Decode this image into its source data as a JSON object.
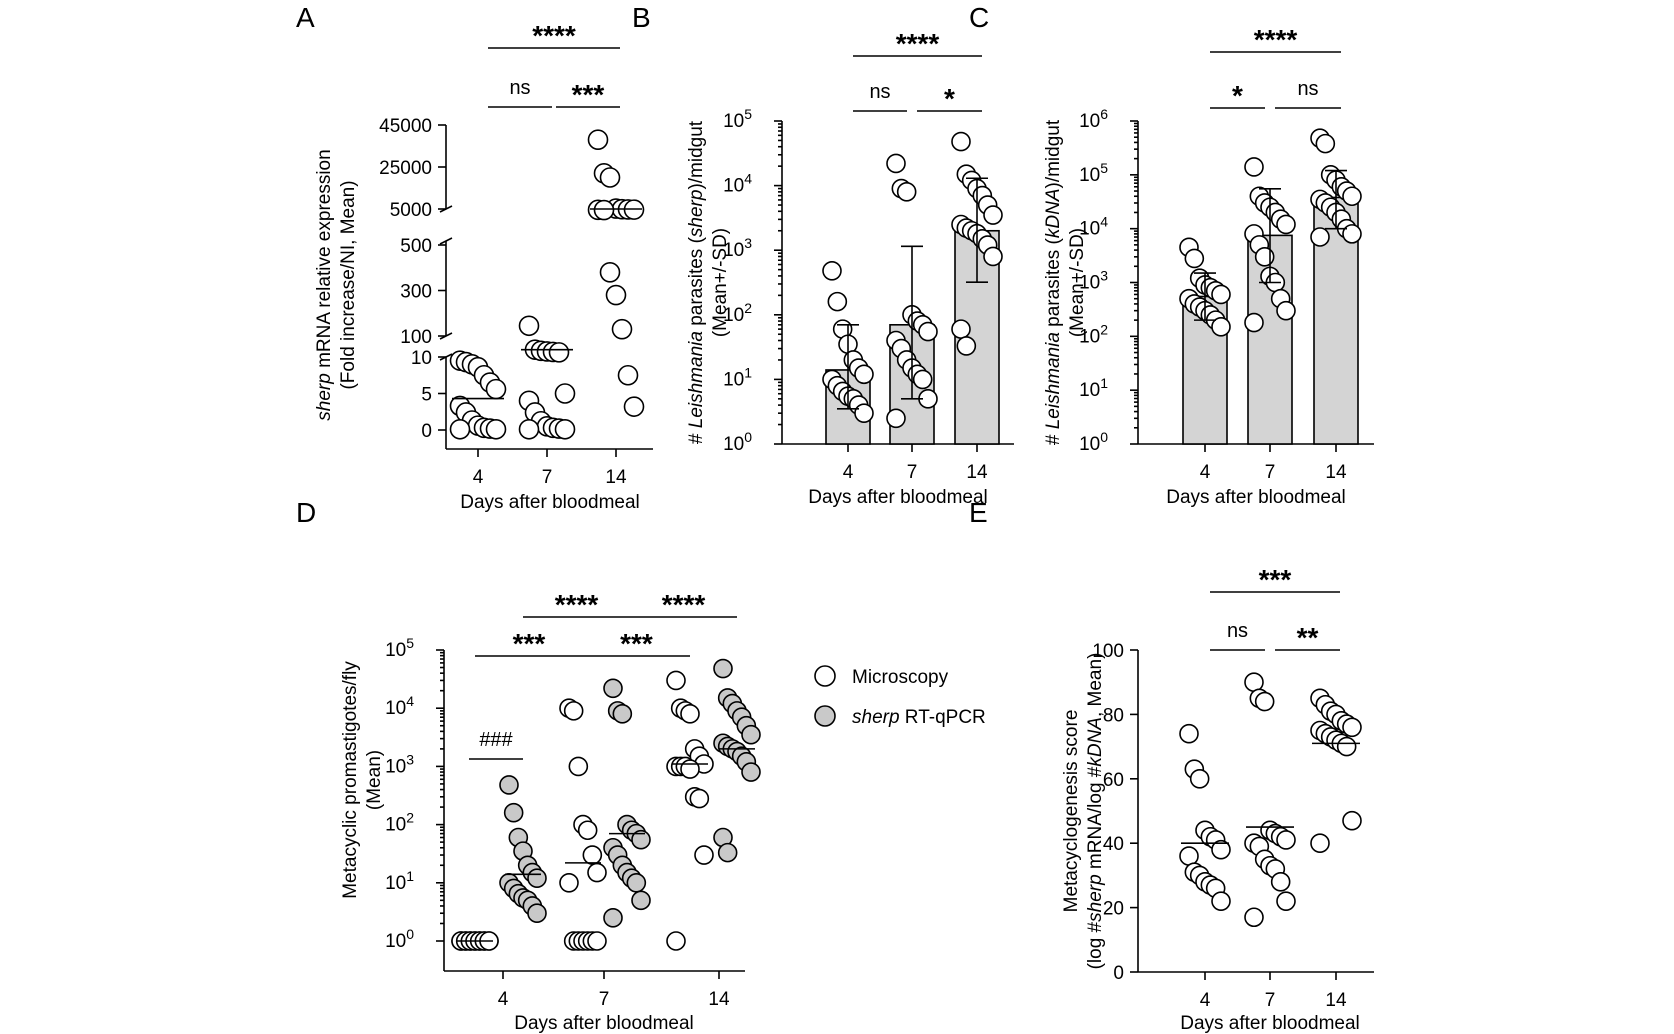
{
  "colors": {
    "open_marker": "#ffffff",
    "grey_marker": "#c9c9c9",
    "bar_fill": "#d4d4d4",
    "ink": "#000000"
  },
  "chart_data": [
    {
      "panel": "A",
      "type": "scatter",
      "ylabel_italic": "sherp",
      "ylabel_rest": " mRNA relative expression",
      "ylabel_line2": "(Fold increase/NI, Mean)",
      "xlabel": "Days after bloodmeal",
      "categories": [
        "4",
        "7",
        "14"
      ],
      "y_scale": "broken linear",
      "ytick_labels": [
        "45000",
        "25000",
        "5000",
        "500",
        "300",
        "100",
        "10",
        "5",
        "0"
      ],
      "points": [
        [
          9.5,
          9.3,
          9,
          8.6,
          7.5,
          6.5,
          5.6,
          3.3,
          2.4,
          1.3,
          0.6,
          0.3,
          0.2,
          0.1,
          0.1
        ],
        [
          145,
          40,
          35,
          32,
          30,
          28,
          5,
          4,
          2.4,
          1.2,
          0.5,
          0.3,
          0.2,
          0.1,
          0.1
        ],
        [
          38000,
          22000,
          20000,
          5200,
          4900,
          4800,
          4700,
          4600,
          4500,
          380,
          280,
          130,
          7.5,
          3.2
        ]
      ],
      "means": [
        4.3,
        40,
        5000
      ],
      "comparisons": [
        {
          "pair": [
            "4",
            "7"
          ],
          "label": "ns"
        },
        {
          "pair": [
            "7",
            "14"
          ],
          "label": "***"
        },
        {
          "pair": [
            "4",
            "14"
          ],
          "label": "****"
        }
      ]
    },
    {
      "panel": "B",
      "type": "bar",
      "ylabel_pre": "# ",
      "ylabel_italic": "Leishmania",
      "ylabel_mid": " parasites (",
      "ylabel_italic2": "sherp",
      "ylabel_post": ")/midgut",
      "ylabel_line2": "(Mean+/-SD)",
      "xlabel": "Days after bloodmeal",
      "categories": [
        "4",
        "7",
        "14"
      ],
      "y_scale": "log",
      "ylim": [
        1,
        100000
      ],
      "ytick_exponents": [
        "0",
        "1",
        "2",
        "3",
        "4",
        "5"
      ],
      "means": [
        14,
        70,
        2000
      ],
      "error_upper": [
        70,
        1150,
        13000
      ],
      "error_lower": [
        3.5,
        5,
        320
      ],
      "points": [
        [
          480,
          160,
          60,
          35,
          20,
          15,
          12,
          10,
          8,
          6.5,
          5.5,
          5,
          4,
          3
        ],
        [
          22000,
          9000,
          8000,
          100,
          80,
          70,
          55,
          40,
          30,
          20,
          15,
          12,
          10,
          5,
          2.5
        ],
        [
          48000,
          15000,
          12000,
          9000,
          7000,
          5000,
          3500,
          2500,
          2200,
          2000,
          1800,
          1500,
          1200,
          800,
          60,
          33
        ]
      ],
      "comparisons": [
        {
          "pair": [
            "4",
            "7"
          ],
          "label": "ns"
        },
        {
          "pair": [
            "7",
            "14"
          ],
          "label": "*"
        },
        {
          "pair": [
            "4",
            "14"
          ],
          "label": "****"
        }
      ]
    },
    {
      "panel": "C",
      "type": "bar",
      "ylabel_pre": "# ",
      "ylabel_italic": "Leishmania",
      "ylabel_mid": " parasites (",
      "ylabel_italic2": "kDNA",
      "ylabel_post": ")/midgut",
      "ylabel_line2": "(Mean+/-SD)",
      "xlabel": "Days after bloodmeal",
      "categories": [
        "4",
        "7",
        "14"
      ],
      "y_scale": "log",
      "ylim": [
        1,
        1000000
      ],
      "ytick_exponents": [
        "0",
        "1",
        "2",
        "3",
        "4",
        "5",
        "6"
      ],
      "means": [
        550,
        7500,
        38000
      ],
      "error_upper": [
        1500,
        55000,
        120000
      ],
      "error_lower": [
        200,
        1000,
        10000
      ],
      "points": [
        [
          4500,
          2800,
          1200,
          900,
          800,
          700,
          600,
          500,
          400,
          350,
          300,
          250,
          200,
          150
        ],
        [
          140000,
          40000,
          30000,
          25000,
          20000,
          15000,
          12000,
          8000,
          5000,
          3000,
          1300,
          1000,
          500,
          300,
          180
        ],
        [
          480000,
          380000,
          100000,
          80000,
          60000,
          50000,
          40000,
          35000,
          30000,
          25000,
          20000,
          15000,
          10000,
          8000,
          7000
        ]
      ],
      "comparisons": [
        {
          "pair": [
            "4",
            "7"
          ],
          "label": "*"
        },
        {
          "pair": [
            "7",
            "14"
          ],
          "label": "ns"
        },
        {
          "pair": [
            "4",
            "14"
          ],
          "label": "****"
        }
      ]
    },
    {
      "panel": "D",
      "type": "scatter",
      "ylabel": "Metacyclic promastigotes/fly",
      "ylabel_line2": "(Mean)",
      "xlabel": "Days after bloodmeal",
      "categories": [
        "4",
        "7",
        "14"
      ],
      "y_scale": "log",
      "ylim": [
        1,
        100000
      ],
      "ytick_exponents": [
        "0",
        "1",
        "2",
        "3",
        "4",
        "5"
      ],
      "legend": {
        "position": "right",
        "microscopy": "Microscopy",
        "sherp_italic": "sherp",
        "sherp_rest": " RT-qPCR"
      },
      "series": [
        {
          "name": "Microscopy",
          "marker": "open",
          "points": [
            [
              1,
              1,
              1,
              1,
              1,
              1,
              1,
              1,
              1,
              1,
              1,
              1,
              1,
              1
            ],
            [
              10000,
              9000,
              1000,
              100,
              80,
              30,
              15,
              10,
              1,
              1,
              1,
              1,
              1,
              1
            ],
            [
              30000,
              10000,
              9000,
              8000,
              2000,
              1500,
              1100,
              1000,
              1000,
              1000,
              900,
              300,
              280,
              30,
              1
            ]
          ],
          "means": [
            1,
            22,
            1100
          ]
        },
        {
          "name": "sherp RT-qPCR",
          "marker": "grey",
          "points": [
            [
              480,
              160,
              60,
              35,
              20,
              15,
              12,
              10,
              8,
              6.5,
              5.5,
              5,
              4,
              3
            ],
            [
              22000,
              9000,
              8000,
              100,
              80,
              70,
              55,
              40,
              30,
              20,
              15,
              12,
              10,
              5,
              2.5
            ],
            [
              48000,
              15000,
              12000,
              9000,
              7000,
              5000,
              3500,
              2500,
              2200,
              2000,
              1800,
              1500,
              1200,
              800,
              60,
              33
            ]
          ],
          "means": [
            14,
            70,
            2000
          ]
        }
      ],
      "comparisons": [
        {
          "label": "###"
        },
        {
          "label": "***"
        },
        {
          "label": "****"
        },
        {
          "label": "***"
        },
        {
          "label": "****"
        }
      ]
    },
    {
      "panel": "E",
      "type": "scatter",
      "ylabel": "Metacyclogenesis score",
      "ylabel_pre": "(log #",
      "ylabel_italic": "sherp",
      "ylabel_mid": " mRNA/log #",
      "ylabel_italic2": "kDNA",
      "ylabel_post": ", Mean)",
      "xlabel": "Days after bloodmeal",
      "categories": [
        "4",
        "7",
        "14"
      ],
      "y_scale": "linear",
      "ylim": [
        0,
        100
      ],
      "ytick_labels": [
        "0",
        "20",
        "40",
        "60",
        "80",
        "100"
      ],
      "points": [
        [
          74,
          63,
          60,
          44,
          42,
          41,
          38,
          36,
          31,
          30,
          28,
          27,
          26,
          22
        ],
        [
          90,
          85,
          84,
          44,
          43,
          42,
          41,
          40,
          39,
          35,
          33,
          32,
          28,
          22,
          17
        ],
        [
          85,
          83,
          81,
          80,
          78,
          77,
          76,
          75,
          74,
          73,
          72,
          71,
          70,
          47,
          40
        ]
      ],
      "means": [
        40,
        45,
        71
      ],
      "comparisons": [
        {
          "pair": [
            "4",
            "7"
          ],
          "label": "ns"
        },
        {
          "pair": [
            "7",
            "14"
          ],
          "label": "**"
        },
        {
          "pair": [
            "4",
            "14"
          ],
          "label": "***"
        }
      ]
    }
  ]
}
